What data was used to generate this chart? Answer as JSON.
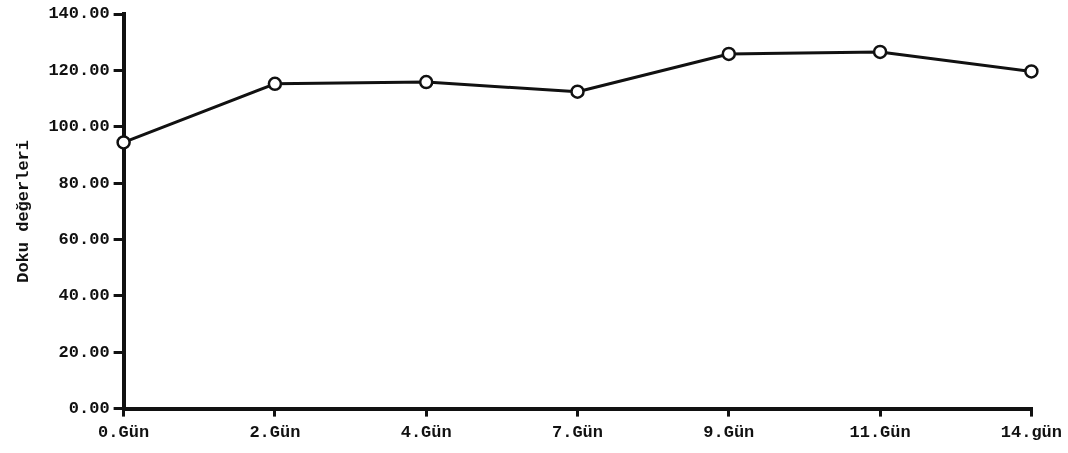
{
  "chart_data": {
    "type": "line",
    "ylabel": "Doku değerleri",
    "categories": [
      "0.Gün",
      "2.Gün",
      "4.Gün",
      "7.Gün",
      "9.Gün",
      "11.Gün",
      "14.gün"
    ],
    "series": [
      {
        "color": "#111111",
        "values": [
          94.5,
          115.3,
          115.9,
          112.5,
          125.9,
          126.6,
          119.7
        ]
      }
    ],
    "ylim": [
      0,
      140
    ],
    "yticks": [
      {
        "value": 0,
        "label": "0.00"
      },
      {
        "value": 20,
        "label": "20.00"
      },
      {
        "value": 40,
        "label": "40.00"
      },
      {
        "value": 60,
        "label": "60.00"
      },
      {
        "value": 80,
        "label": "80.00"
      },
      {
        "value": 100,
        "label": "100.00"
      },
      {
        "value": 120,
        "label": "120.00"
      },
      {
        "value": 140,
        "label": "140.00"
      }
    ],
    "grid": false,
    "legend": false,
    "marker": "circle",
    "line_style": "solid"
  }
}
